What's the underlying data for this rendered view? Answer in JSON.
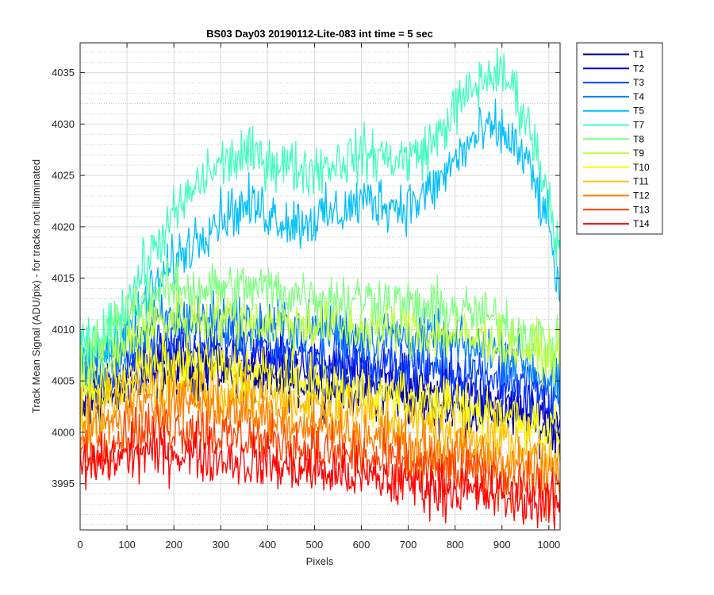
{
  "chart_data": {
    "type": "line",
    "title": "BS03 Day03 20190112-Lite-083 int time = 5 sec",
    "xlabel": "Pixels",
    "ylabel": "Track Mean Signal (ADU/pix) - for tracks not illuminated",
    "xlim": [
      0,
      1024
    ],
    "ylim": [
      3990.5,
      4037.9
    ],
    "xticks": [
      0,
      100,
      200,
      300,
      400,
      500,
      600,
      700,
      800,
      900,
      1000
    ],
    "yticks": [
      3995,
      4000,
      4005,
      4010,
      4015,
      4020,
      4025,
      4030,
      4035
    ],
    "grid": "major-solid-minor-dotted",
    "legend_position": "outside-right-top",
    "x": [
      0,
      40,
      80,
      120,
      160,
      200,
      240,
      280,
      320,
      360,
      400,
      440,
      480,
      520,
      560,
      600,
      640,
      680,
      720,
      760,
      800,
      840,
      880,
      920,
      960,
      1000,
      1024
    ],
    "series": [
      {
        "name": "T1",
        "color": "#00008f",
        "values": [
          4002,
          4003,
          4004,
          4005,
          4005.5,
          4006,
          4006,
          4006,
          4006,
          4005.5,
          4005,
          4005,
          4005,
          4004.5,
          4004.5,
          4004,
          4004,
          4003.5,
          4003,
          4002.5,
          4002.5,
          4002,
          4002,
          4001.5,
          4001,
          4000.5,
          4000
        ]
      },
      {
        "name": "T2",
        "color": "#0000d0",
        "values": [
          4003,
          4004,
          4005,
          4006.5,
          4007,
          4007.5,
          4007.5,
          4007.5,
          4007.5,
          4007,
          4007,
          4006.5,
          4006.5,
          4006,
          4006,
          4005.5,
          4005.5,
          4005,
          4004.5,
          4004.5,
          4004,
          4003.5,
          4003.5,
          4003,
          4002.5,
          4002,
          4001.5
        ]
      },
      {
        "name": "T3",
        "color": "#0040ff",
        "values": [
          4004,
          4005,
          4006.5,
          4007.5,
          4008.5,
          4009,
          4009,
          4009,
          4009,
          4008.5,
          4008.5,
          4008,
          4008,
          4007.5,
          4007.5,
          4007,
          4007,
          4007,
          4006.5,
          4006.5,
          4006,
          4006,
          4005.5,
          4005,
          4004.5,
          4003.5,
          4002.5
        ]
      },
      {
        "name": "T4",
        "color": "#0080ff",
        "values": [
          4006,
          4007,
          4008,
          4009.5,
          4010.5,
          4011,
          4011,
          4011,
          4011,
          4010.5,
          4010.5,
          4010.5,
          4010,
          4010,
          4010,
          4009.5,
          4009.5,
          4009.5,
          4009,
          4009,
          4008.5,
          4008,
          4008,
          4007.5,
          4006.5,
          4005,
          4004
        ]
      },
      {
        "name": "T5",
        "color": "#00bfff",
        "values": [
          4007,
          4007.5,
          4009,
          4011.5,
          4014,
          4016.5,
          4018.5,
          4020.5,
          4021.5,
          4022,
          4021.5,
          4020.5,
          4020.5,
          4021,
          4021.5,
          4022.5,
          4022.5,
          4022,
          4022.5,
          4024,
          4026.5,
          4028.5,
          4029.5,
          4028.5,
          4025.5,
          4020,
          4013
        ]
      },
      {
        "name": "T7",
        "color": "#40ffbf",
        "values": [
          4008,
          4008.5,
          4011,
          4014.5,
          4018,
          4021,
          4023.5,
          4025.5,
          4026.5,
          4027,
          4026.5,
          4026,
          4025.5,
          4026,
          4026.5,
          4027,
          4027,
          4026.5,
          4027,
          4028.5,
          4031.5,
          4033.5,
          4035,
          4034,
          4029.5,
          4023,
          4017
        ]
      },
      {
        "name": "T8",
        "color": "#80ff80",
        "values": [
          4007,
          4008.5,
          4010.5,
          4012.5,
          4013.5,
          4014,
          4014,
          4014,
          4014,
          4014,
          4014,
          4013.5,
          4013.5,
          4013,
          4013,
          4013,
          4013,
          4012.5,
          4012,
          4012,
          4012,
          4011.5,
          4011,
          4010.5,
          4009.5,
          4008.5,
          4008
        ]
      },
      {
        "name": "T9",
        "color": "#bfff40",
        "values": [
          4005,
          4006,
          4007.5,
          4009.5,
          4010.5,
          4011,
          4011,
          4011,
          4011,
          4011,
          4010.5,
          4010.5,
          4010.5,
          4010.5,
          4010,
          4010,
          4010,
          4010,
          4010,
          4009.5,
          4009.5,
          4009,
          4009,
          4008.5,
          4008,
          4007.5,
          4007
        ]
      },
      {
        "name": "T10",
        "color": "#ffff00",
        "values": [
          4003,
          4004,
          4005,
          4006,
          4006.5,
          4006.5,
          4006.5,
          4006.5,
          4006,
          4006,
          4005.5,
          4005,
          4005,
          4004.5,
          4004,
          4004,
          4003.5,
          4003.5,
          4003,
          4003,
          4002.5,
          4002,
          4002,
          4001.5,
          4001,
          4000.5,
          4000
        ]
      },
      {
        "name": "T11",
        "color": "#ffbf00",
        "values": [
          4001,
          4002,
          4003,
          4004,
          4004.5,
          4004.5,
          4004.5,
          4004,
          4004,
          4003.5,
          4003.5,
          4003,
          4003,
          4002.5,
          4002,
          4002,
          4001.5,
          4001,
          4001,
          4000.5,
          4000,
          4000,
          3999.5,
          3999,
          3998.5,
          3998,
          3998
        ]
      },
      {
        "name": "T12",
        "color": "#ff8000",
        "values": [
          3999.5,
          4000,
          4001,
          4002,
          4002.5,
          4003,
          4003,
          4002.5,
          4002,
          4002,
          4001.5,
          4001,
          4001,
          4000.5,
          4000,
          3999.5,
          3999.5,
          3999,
          3998.5,
          3998,
          3998,
          3997.5,
          3997.5,
          3997,
          3996.5,
          3996,
          3996
        ]
      },
      {
        "name": "T13",
        "color": "#ff4000",
        "values": [
          3998,
          3998.5,
          3999.5,
          4000,
          4000.5,
          4000.5,
          4000.5,
          4000,
          3999.5,
          3999.5,
          3999,
          3999,
          3998.5,
          3998,
          3998,
          3997.5,
          3997,
          3997,
          3996.5,
          3996.5,
          3996,
          3996,
          3995.5,
          3995,
          3995,
          3994.5,
          3994
        ]
      },
      {
        "name": "T14",
        "color": "#ff0000",
        "values": [
          3996.5,
          3997,
          3997.5,
          3998,
          3998,
          3998,
          3998,
          3997.5,
          3997.5,
          3997,
          3997,
          3996.5,
          3996.5,
          3996,
          3996,
          3995.5,
          3995.5,
          3995,
          3995,
          3994.5,
          3994.5,
          3994,
          3994,
          3993.5,
          3993.5,
          3993,
          3993
        ]
      }
    ]
  }
}
